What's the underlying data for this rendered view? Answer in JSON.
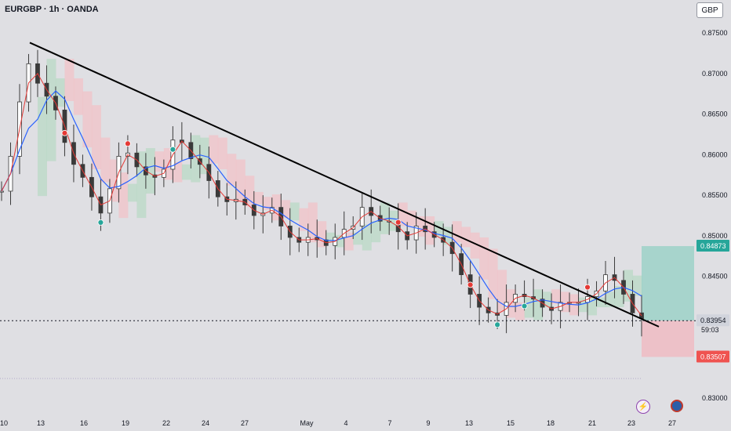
{
  "header": {
    "symbol": "EURGBP · 1h · OANDA",
    "currency": "GBP"
  },
  "colors": {
    "background": "#dfdfe3",
    "candle": "#3a3a3a",
    "trendline": "#000000",
    "tenkan": "#e53935",
    "kijun": "#2962ff",
    "cloud_bull": "#b7d8c3",
    "cloud_bear": "#f2c0c6",
    "target_zone": "#8fcfc2",
    "stop_zone": "#f0b9c0",
    "target_label": "#26a69a",
    "stop_label": "#ef5350",
    "current_label": "#d1d4dc"
  },
  "price_axis": {
    "ticks": [
      "0.87500",
      "0.87000",
      "0.86500",
      "0.86000",
      "0.85500",
      "0.85000",
      "0.84500",
      "0.83000"
    ],
    "target_label": "0.84873",
    "current_label": "0.83954",
    "countdown": "59:03",
    "stop_label": "0.83507"
  },
  "date_axis": {
    "ticks": [
      "10",
      "13",
      "16",
      "19",
      "22",
      "24",
      "27",
      "May",
      "4",
      "7",
      "9",
      "13",
      "15",
      "18",
      "21",
      "23",
      "27"
    ]
  },
  "chart_data": {
    "type": "line",
    "title": "EURGBP · 1h · OANDA",
    "xlabel": "",
    "ylabel": "",
    "ylim": [
      0.829,
      0.8772
    ],
    "series": [
      {
        "values": [
          0.8555,
          0.8598,
          0.8665,
          0.8712,
          0.8688,
          0.8672,
          0.8655,
          0.8615,
          0.8588,
          0.8572,
          0.8548,
          0.8528,
          0.8558,
          0.8598,
          0.8602,
          0.8585,
          0.8575,
          0.8572,
          0.8582,
          0.8618,
          0.8615,
          0.8595,
          0.8588,
          0.8568,
          0.8548,
          0.8542,
          0.8545,
          0.8538,
          0.8525,
          0.8528,
          0.8535,
          0.8512,
          0.8498,
          0.8492,
          0.8498,
          0.8495,
          0.8488,
          0.8498,
          0.8508,
          0.8512,
          0.8535,
          0.8525,
          0.8518,
          0.8518,
          0.8505,
          0.8495,
          0.8512,
          0.8505,
          0.8498,
          0.8492,
          0.8478,
          0.8452,
          0.8428,
          0.8412,
          0.8405,
          0.8402,
          0.8418,
          0.8428,
          0.8425,
          0.8422,
          0.8412,
          0.8408,
          0.8418,
          0.8418,
          0.8418,
          0.8425,
          0.8432,
          0.8452,
          0.8445,
          0.8428,
          0.8405,
          0.8398
        ]
      }
    ],
    "trendline": {
      "start": 0.8738,
      "end": 0.8388
    },
    "current_price": 0.83954,
    "target": 0.84873,
    "stop": 0.83507
  }
}
